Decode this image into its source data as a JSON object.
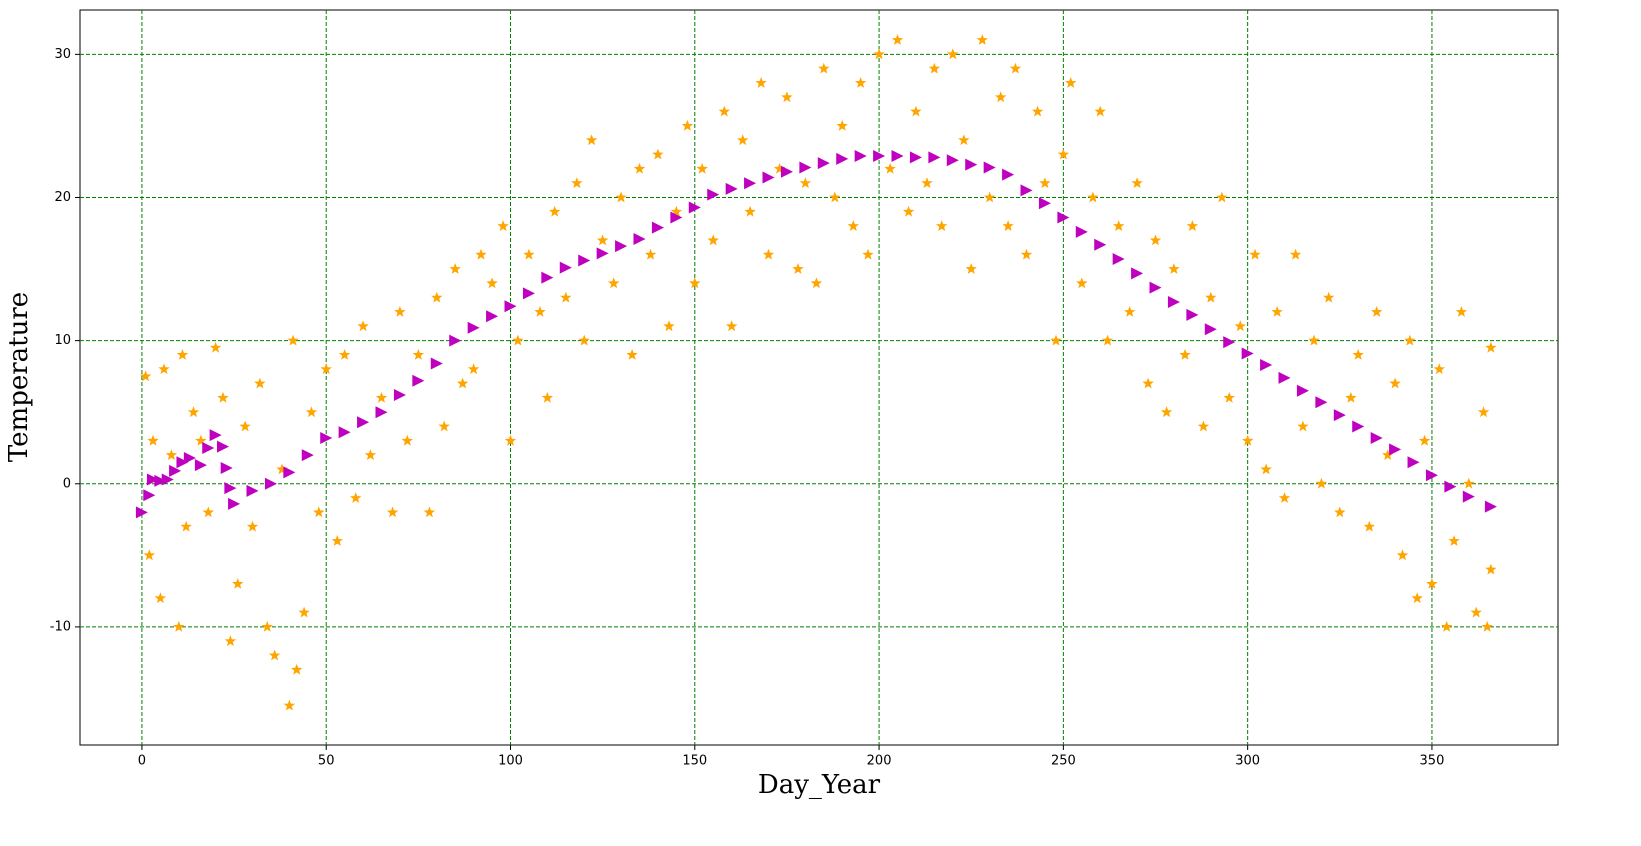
{
  "chart_data": {
    "type": "scatter",
    "x_label": "Day_Year",
    "y_label": "Temperature",
    "xlim": [
      -16.8,
      384.2
    ],
    "ylim": [
      -18.25,
      33.1
    ],
    "xticks": [
      0,
      50,
      100,
      150,
      200,
      250,
      300,
      350
    ],
    "yticks": [
      -10,
      0,
      10,
      20,
      30
    ],
    "grid": true,
    "grid_color": "#008000",
    "x_label_color": "#0000ff",
    "y_label_color": "#8b0000",
    "series": [
      {
        "color": "#ffa500",
        "marker": "star",
        "x": [
          1,
          2,
          3,
          5,
          6,
          8,
          10,
          11,
          12,
          14,
          16,
          18,
          20,
          22,
          24,
          26,
          28,
          30,
          32,
          34,
          36,
          38,
          40,
          41,
          42,
          44,
          46,
          48,
          50,
          53,
          55,
          58,
          60,
          62,
          65,
          68,
          70,
          72,
          75,
          78,
          80,
          82,
          85,
          87,
          90,
          92,
          95,
          98,
          100,
          102,
          105,
          108,
          110,
          112,
          115,
          118,
          120,
          122,
          125,
          128,
          130,
          133,
          135,
          138,
          140,
          143,
          145,
          148,
          150,
          152,
          155,
          158,
          160,
          163,
          165,
          168,
          170,
          173,
          175,
          178,
          180,
          183,
          185,
          188,
          190,
          193,
          195,
          197,
          200,
          203,
          205,
          208,
          210,
          213,
          215,
          217,
          220,
          223,
          225,
          228,
          230,
          233,
          235,
          237,
          240,
          243,
          245,
          248,
          250,
          252,
          255,
          258,
          260,
          262,
          265,
          268,
          270,
          273,
          275,
          278,
          280,
          283,
          285,
          288,
          290,
          293,
          295,
          298,
          300,
          302,
          305,
          308,
          310,
          313,
          315,
          318,
          320,
          322,
          325,
          328,
          330,
          333,
          335,
          338,
          340,
          342,
          344,
          346,
          348,
          350,
          352,
          354,
          356,
          358,
          360,
          362,
          364,
          365,
          366,
          366
        ],
        "values": [
          7.5,
          -5,
          3,
          -8,
          8,
          2,
          -10,
          9,
          -3,
          5,
          3,
          -2,
          9.5,
          6,
          -11,
          -7,
          4,
          -3,
          7,
          -10,
          -12,
          1,
          -15.5,
          10,
          -13,
          -9,
          5,
          -2,
          8,
          -4,
          9,
          -1,
          11,
          2,
          6,
          -2,
          12,
          3,
          9,
          -2,
          13,
          4,
          15,
          7,
          8,
          16,
          14,
          18,
          3,
          10,
          16,
          12,
          6,
          19,
          13,
          21,
          10,
          24,
          17,
          14,
          20,
          9,
          22,
          16,
          23,
          11,
          19,
          25,
          14,
          22,
          17,
          26,
          11,
          24,
          19,
          28,
          16,
          22,
          27,
          15,
          21,
          14,
          29,
          20,
          25,
          18,
          28,
          16,
          30,
          22,
          31,
          19,
          26,
          21,
          29,
          18,
          30,
          24,
          15,
          31,
          20,
          27,
          18,
          29,
          16,
          26,
          21,
          10,
          23,
          28,
          14,
          20,
          26,
          10,
          18,
          12,
          21,
          7,
          17,
          5,
          15,
          9,
          18,
          4,
          13,
          20,
          6,
          11,
          3,
          16,
          1,
          12,
          -1,
          16,
          4,
          10,
          0,
          13,
          -2,
          6,
          9,
          -3,
          12,
          2,
          7,
          -5,
          10,
          -8,
          3,
          -7,
          8,
          -10,
          -4,
          12,
          0,
          -9,
          5,
          -10,
          9.5,
          -6
        ]
      },
      {
        "color": "#bf00bf",
        "marker": "triangle-right",
        "x": [
          0,
          2,
          3,
          5,
          7,
          9,
          11,
          13,
          16,
          18,
          20,
          22,
          23,
          24,
          25,
          30,
          35,
          40,
          45,
          50,
          55,
          60,
          65,
          70,
          75,
          80,
          85,
          90,
          95,
          100,
          105,
          110,
          115,
          120,
          125,
          130,
          135,
          140,
          145,
          150,
          155,
          160,
          165,
          170,
          175,
          180,
          185,
          190,
          195,
          200,
          205,
          210,
          215,
          220,
          225,
          230,
          235,
          240,
          245,
          250,
          255,
          260,
          265,
          270,
          275,
          280,
          285,
          290,
          295,
          300,
          305,
          310,
          315,
          320,
          325,
          330,
          335,
          340,
          345,
          350,
          355,
          360,
          366
        ],
        "values": [
          -2,
          -0.8,
          0.3,
          0.2,
          0.3,
          0.9,
          1.5,
          1.8,
          1.3,
          2.5,
          3.4,
          2.6,
          1.1,
          -0.3,
          -1.4,
          -0.5,
          0,
          0.8,
          2,
          3.2,
          3.6,
          4.3,
          5,
          6.2,
          7.2,
          8.4,
          10,
          10.9,
          11.7,
          12.4,
          13.3,
          14.4,
          15.1,
          15.6,
          16.1,
          16.6,
          17.1,
          17.9,
          18.6,
          19.3,
          20.2,
          20.6,
          21,
          21.4,
          21.8,
          22.1,
          22.4,
          22.7,
          22.9,
          22.9,
          22.9,
          22.8,
          22.8,
          22.6,
          22.3,
          22.1,
          21.6,
          20.5,
          19.6,
          18.6,
          17.6,
          16.7,
          15.7,
          14.7,
          13.7,
          12.7,
          11.8,
          10.8,
          9.9,
          9.1,
          8.3,
          7.4,
          6.5,
          5.7,
          4.8,
          4,
          3.2,
          2.4,
          1.5,
          0.6,
          -0.2,
          -0.9,
          -1.6
        ]
      }
    ]
  }
}
